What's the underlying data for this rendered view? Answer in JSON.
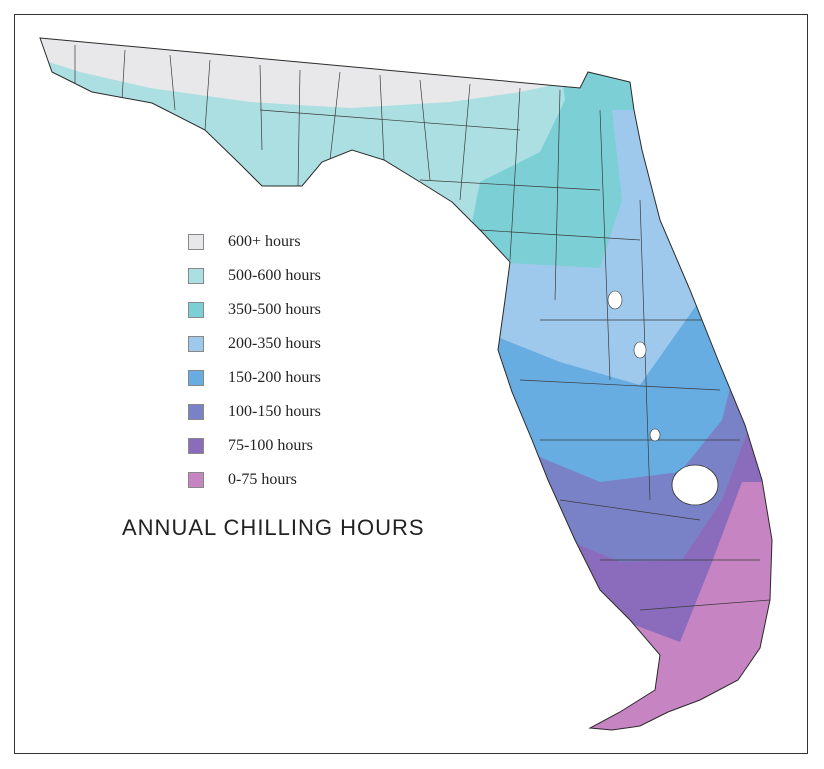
{
  "map": {
    "title": "ANNUAL CHILLING HOURS",
    "region": "Florida",
    "legend": [
      {
        "label": "600+ hours",
        "color": "#e8e8ea"
      },
      {
        "label": "500-600 hours",
        "color": "#abdfe2"
      },
      {
        "label": "350-500 hours",
        "color": "#7dcfd6"
      },
      {
        "label": "200-350 hours",
        "color": "#9fc9ec"
      },
      {
        "label": "150-200 hours",
        "color": "#68ade2"
      },
      {
        "label": "100-150 hours",
        "color": "#7a82c7"
      },
      {
        "label": "75-100 hours",
        "color": "#8b6cbc"
      },
      {
        "label": "0-75 hours",
        "color": "#c684c2"
      }
    ]
  }
}
